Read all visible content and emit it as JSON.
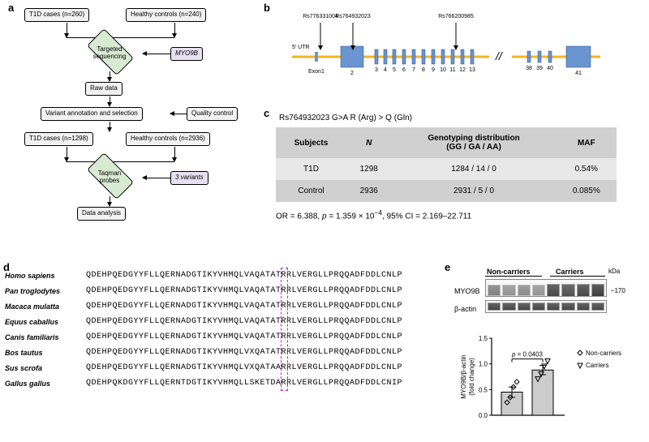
{
  "labels": {
    "a": "a",
    "b": "b",
    "c": "c",
    "d": "d",
    "e": "e"
  },
  "a": {
    "b1": "T1D cases (n=260)",
    "b2": "Healthy controls (n=240)",
    "d1": "Targeted",
    "d1b": "sequencing",
    "s1": "MYO9B",
    "b3": "Raw data",
    "b4": "Variant annotation and selection",
    "s2": "Quality control",
    "b5": "T1D cases (n=1298)",
    "b6": "Healthy controls (n=2936)",
    "d2": "Taqman",
    "d2b": "probes",
    "s3": "3 variants",
    "b7": "Data analysis"
  },
  "b": {
    "rs1": "Rs776331004",
    "rs2": "Rs764932023",
    "rs3": "Rs766200985",
    "utr": "5' UTR",
    "exon": "Exon1",
    "exon_labels": [
      "2",
      "3",
      "4",
      "5",
      "6",
      "7",
      "8",
      "9",
      "10",
      "11",
      "12",
      "13"
    ],
    "right_labels": [
      "38",
      "39",
      "40",
      "41"
    ],
    "exon_x": [
      80,
      122,
      133,
      144,
      156,
      168,
      180,
      192,
      204,
      216,
      228,
      240
    ],
    "exon_w": [
      28,
      4,
      4,
      4,
      4,
      4,
      4,
      4,
      4,
      4,
      4,
      4
    ],
    "right_x": [
      310,
      323,
      336,
      358
    ],
    "right_w": [
      4,
      4,
      4,
      30
    ],
    "intron_color": "#f5b521",
    "exon_color": "#6a95d0",
    "break_x": 263
  },
  "c": {
    "title": "Rs764932023    G>A    R (Arg) > Q (Gln)",
    "headers": [
      "Subjects",
      "N",
      "Genotyping distribution\n(GG / GA / AA)",
      "MAF"
    ],
    "rows": [
      [
        "T1D",
        "1298",
        "1284 / 14 / 0",
        "0.54%"
      ],
      [
        "Control",
        "2936",
        "2931 / 5 / 0",
        "0.085%"
      ]
    ],
    "stats_pre": "OR = 6.388, ",
    "stats_p_lbl": "p",
    "stats_p_val": " = 1.359 × 10",
    "stats_p_exp": "−4",
    "stats_ci": ", 95% CI = 2.169–22.711"
  },
  "d": {
    "species": [
      "Homo sapiens",
      "Pan troglodytes",
      "Macaca mulatta",
      "Equus caballus",
      "Canis familiaris",
      "Bos tautus",
      "Sus scrofa",
      "Gallus gallus"
    ],
    "seqs": [
      "QDEHPQEDGYYFLLQERNADGTIKYVHMQLVAQATATRRLVERGLLPRQQADFDDLCNLP",
      "QDEHPQEDGYYFLLQERNADGTIKYVHMQLVAQATATRRLVERGLLPRQQADFDDLCNLP",
      "QDEHPQEDGYYFLLQERNADGTIKYVHMQLVAQATATRRLVERGLLPRQQADFDDLCNLP",
      "QDEHPQEDGYYFLLQERNADGTIKYVHMQLVAQATATRRLVERGLLPRQQADFDDLCNLP",
      "QDEHPQEDGYYFLLQERNADGTIKYVHMQLVAQATATRRLVERGLLPRQQADFDDLCNLP",
      "QDEHPQEDGYYFLLQERNADGTIKYVHMQLVXQATATRRLVERGLLPRQQADFDDLCNLP",
      "QDEHPQEDGYYFLLQERNADGTIKYVHMQLVXQATAARRLVERGLLPRQQADFDDLCNLP",
      "QDEHPQKDGYYFLLQERNTDGTIKYVHMQLLSKETDARRLVERGLLPRQQADFDDLCNIP"
    ],
    "hl_col": 37
  },
  "e": {
    "grp1": "Non-carriers",
    "grp2": "Carriers",
    "kda": "kDa",
    "m170": "170",
    "lab1": "MYO9B",
    "lab2": "β-actin",
    "yaxis_a": "MYO9B/β-actin",
    "yaxis_b": "(fold change)",
    "pval": "p = 0.0403",
    "legend1": "Non-carriers",
    "legend2": "Carriers",
    "chart": {
      "yticks": [
        "0.0",
        "0.5",
        "1.0",
        "1.5"
      ],
      "ymax": 1.5,
      "bar1_mean": 0.45,
      "bar1_err": 0.1,
      "bar2_mean": 0.88,
      "bar2_err": 0.09,
      "bar1_pts": [
        0.25,
        0.35,
        0.55,
        0.65
      ],
      "bar2_pts": [
        0.7,
        0.8,
        0.95,
        1.05
      ],
      "bar_fill": "#cccccc",
      "bar_stroke": "#000"
    }
  }
}
